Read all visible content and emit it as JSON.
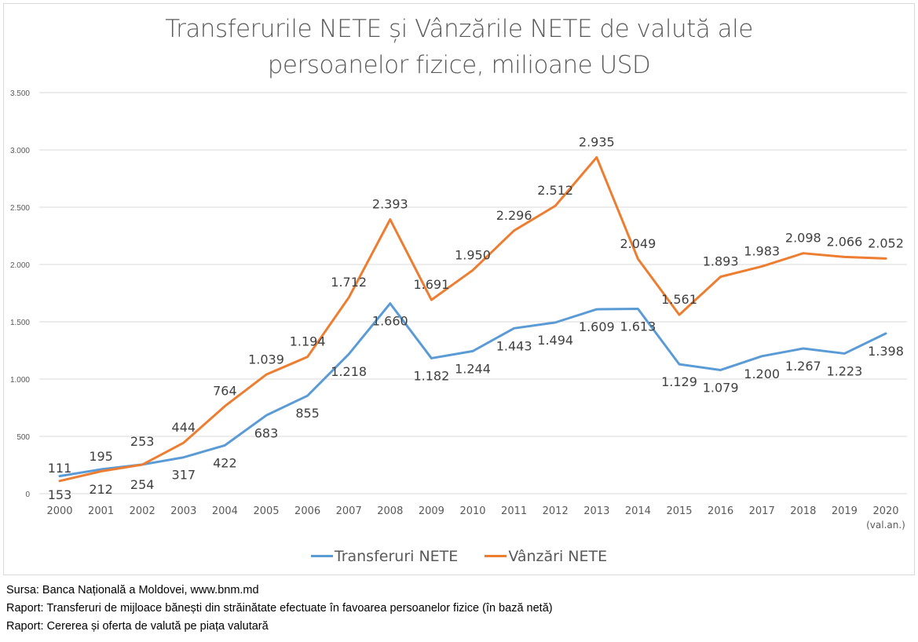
{
  "chart_data": {
    "type": "line",
    "title": "Transferurile NETE și Vânzările NETE de valută ale persoanelor fizice, milioane USD",
    "title_lines": [
      "Transferurile NETE și Vânzările NETE de valută ale",
      "persoanelor fizice, milioane USD"
    ],
    "xlabel": "",
    "ylabel": "",
    "ylim": [
      0,
      3500
    ],
    "yticks": [
      0,
      500,
      1000,
      1500,
      2000,
      2500,
      3000,
      3500
    ],
    "ytick_labels": [
      "0",
      "500",
      "1.000",
      "1.500",
      "2.000",
      "2.500",
      "3.000",
      "3.500"
    ],
    "grid": true,
    "categories": [
      "2000",
      "2001",
      "2002",
      "2003",
      "2004",
      "2005",
      "2006",
      "2007",
      "2008",
      "2009",
      "2010",
      "2011",
      "2012",
      "2013",
      "2014",
      "2015",
      "2016",
      "2017",
      "2018",
      "2019",
      "2020"
    ],
    "category_note": {
      "2020": "(val.an.)"
    },
    "legend_position": "bottom",
    "series": [
      {
        "name": "Transferuri NETE",
        "color": "#5B9BD5",
        "values": [
          153,
          212,
          254,
          317,
          422,
          683,
          855,
          1218,
          1660,
          1182,
          1244,
          1443,
          1494,
          1609,
          1613,
          1129,
          1079,
          1200,
          1267,
          1223,
          1398
        ],
        "labels": [
          "153",
          "212",
          "254",
          "317",
          "422",
          "683",
          "855",
          "1.218",
          "1.660",
          "1.182",
          "1.244",
          "1.443",
          "1.494",
          "1.609",
          "1.613",
          "1.129",
          "1.079",
          "1.200",
          "1.267",
          "1.223",
          "1.398"
        ]
      },
      {
        "name": "Vânzări NETE",
        "color": "#ED7D31",
        "values": [
          111,
          195,
          253,
          444,
          764,
          1039,
          1194,
          1712,
          2393,
          1691,
          1950,
          2296,
          2512,
          2935,
          2049,
          1561,
          1893,
          1983,
          2098,
          2066,
          2052
        ],
        "labels": [
          "111",
          "195",
          "253",
          "444",
          "764",
          "1.039",
          "1.194",
          "1.712",
          "2.393",
          "1.691",
          "1.950",
          "2.296",
          "2.512",
          "2.935",
          "2.049",
          "1.561",
          "1.893",
          "1.983",
          "2.098",
          "2.066",
          "2.052"
        ]
      }
    ]
  },
  "legend": {
    "items": [
      "Transferuri NETE",
      "Vânzări NETE"
    ]
  },
  "source": {
    "lines": [
      "Sursa: Banca Națională a Moldovei, www.bnm.md",
      "Raport: Transferuri de mijloace bănești din străinătate efectuate în favoarea persoanelor fizice (în bază netă)",
      "Raport: Cererea și oferta de valută pe piața valutară"
    ]
  }
}
